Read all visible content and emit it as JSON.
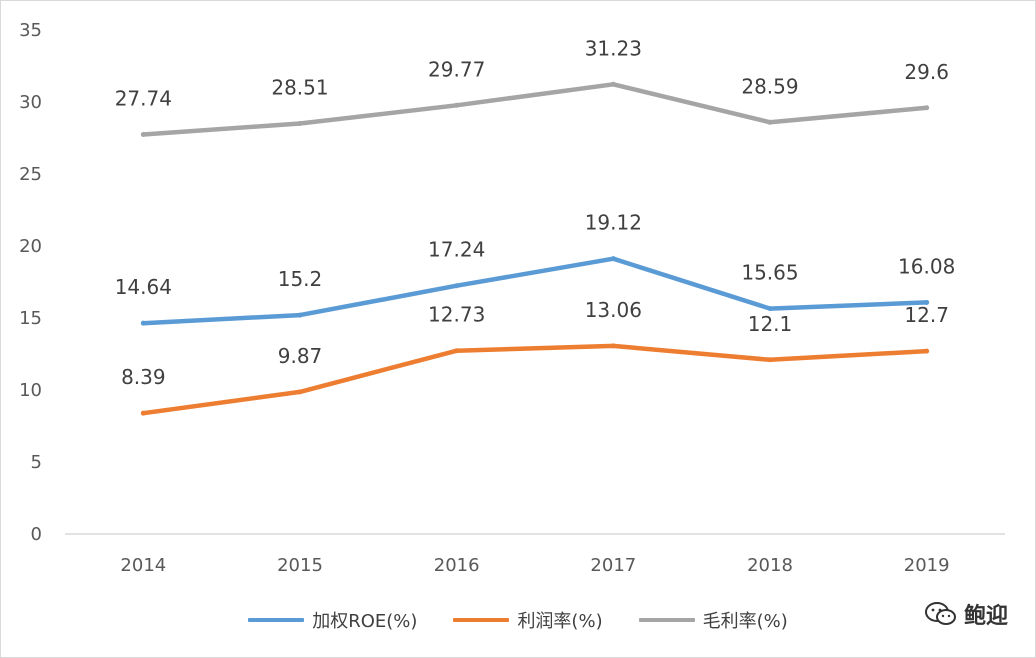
{
  "chart_data": {
    "type": "line",
    "categories": [
      "2014",
      "2015",
      "2016",
      "2017",
      "2018",
      "2019"
    ],
    "series": [
      {
        "name": "加权ROE(%)",
        "color": "#5b9bd5",
        "values": [
          14.64,
          15.2,
          17.24,
          19.12,
          15.65,
          16.08
        ],
        "labels": [
          "14.64",
          "15.2",
          "17.24",
          "19.12",
          "15.65",
          "16.08"
        ]
      },
      {
        "name": "利润率(%)",
        "color": "#ed7d31",
        "values": [
          8.39,
          9.87,
          12.73,
          13.06,
          12.1,
          12.7
        ],
        "labels": [
          "8.39",
          "9.87",
          "12.73",
          "13.06",
          "12.1",
          "12.7"
        ]
      },
      {
        "name": "毛利率(%)",
        "color": "#a5a5a5",
        "values": [
          27.74,
          28.51,
          29.77,
          31.23,
          28.59,
          29.6
        ],
        "labels": [
          "27.74",
          "28.51",
          "29.77",
          "31.23",
          "28.59",
          "29.6"
        ]
      }
    ],
    "ylim": [
      0,
      35
    ],
    "yticks": [
      "0",
      "5",
      "10",
      "15",
      "20",
      "25",
      "30",
      "35"
    ],
    "grid": false,
    "legend_position": "bottom"
  },
  "watermark": {
    "text": "鲍迎",
    "icon": "wechat-icon"
  }
}
